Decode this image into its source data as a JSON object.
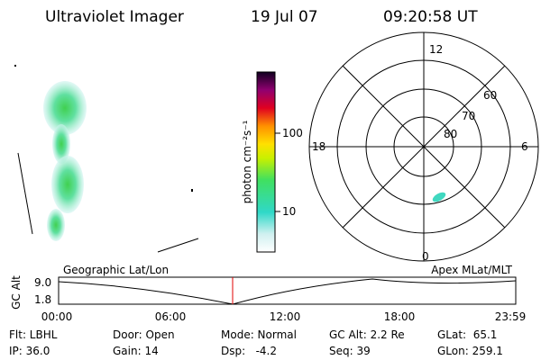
{
  "header": {
    "instrument": "Ultraviolet Imager",
    "date": "19 Jul 07",
    "time": "09:20:58 UT"
  },
  "colorbar": {
    "label": "photon cm⁻²s⁻¹",
    "ticks": [
      "100",
      "10"
    ]
  },
  "polar": {
    "mlt_labels": [
      "12",
      "18",
      "6",
      "0"
    ],
    "lat_labels": [
      "60",
      "70",
      "80"
    ]
  },
  "altitude": {
    "axis_label": "GC Alt",
    "left_title": "Geographic Lat/Lon",
    "right_title": "Apex MLat/MLT",
    "yticks": [
      "9.0",
      "1.8"
    ],
    "xticks": [
      "00:00",
      "06:00",
      "12:00",
      "18:00",
      "23:59"
    ]
  },
  "status": {
    "rows": [
      [
        "Flt: LBHL",
        "Door: Open",
        "Mode: Normal",
        "GC Alt: 2.2 Re",
        "GLat:  65.1"
      ],
      [
        "IP: 36.0",
        "Gain: 14",
        "Dsp:   -4.2",
        "Seq: 39",
        "GLon: 259.1"
      ]
    ]
  }
}
